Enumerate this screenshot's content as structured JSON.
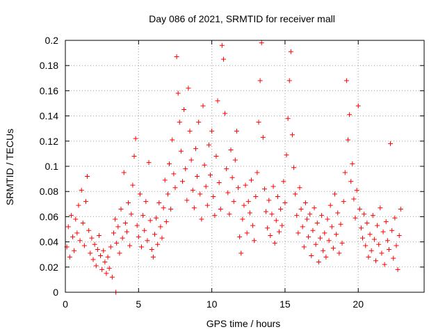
{
  "chart_data": {
    "type": "scatter",
    "title": "Day 086 of 2021, SRMTID for receiver mall",
    "xlabel": "GPS time / hours",
    "ylabel": "SRMTID / TECUs",
    "xlim": [
      0,
      24.5
    ],
    "ylim": [
      0,
      0.2
    ],
    "xticks": [
      0,
      5,
      10,
      15,
      20
    ],
    "xtick_labels": [
      "0",
      "5",
      "10",
      "15",
      "20"
    ],
    "yticks": [
      0,
      0.02,
      0.04,
      0.06,
      0.08,
      0.1,
      0.12,
      0.14,
      0.16,
      0.18,
      0.2
    ],
    "ytick_labels": [
      "0",
      "0.02",
      "0.04",
      "0.06",
      "0.08",
      "0.1",
      "0.12",
      "0.14",
      "0.16",
      "0.18",
      "0.2"
    ],
    "grid": true,
    "marker": "+",
    "color": "#ff0000",
    "series": [
      {
        "name": "SRMTID",
        "points": [
          [
            0.1,
            0.036
          ],
          [
            0.2,
            0.052
          ],
          [
            0.3,
            0.028
          ],
          [
            0.4,
            0.061
          ],
          [
            0.5,
            0.044
          ],
          [
            0.6,
            0.033
          ],
          [
            0.7,
            0.058
          ],
          [
            0.8,
            0.047
          ],
          [
            0.9,
            0.069
          ],
          [
            1.0,
            0.041
          ],
          [
            1.1,
            0.081
          ],
          [
            1.2,
            0.055
          ],
          [
            1.3,
            0.037
          ],
          [
            1.4,
            0.072
          ],
          [
            1.5,
            0.092
          ],
          [
            1.6,
            0.049
          ],
          [
            1.7,
            0.031
          ],
          [
            1.8,
            0.043
          ],
          [
            1.9,
            0.026
          ],
          [
            2.0,
            0.038
          ],
          [
            2.1,
            0.021
          ],
          [
            2.2,
            0.034
          ],
          [
            2.3,
            0.045
          ],
          [
            2.4,
            0.029
          ],
          [
            2.5,
            0.018
          ],
          [
            2.6,
            0.033
          ],
          [
            2.7,
            0.024
          ],
          [
            2.8,
            0.015
          ],
          [
            2.9,
            0.028
          ],
          [
            3.0,
            0.019
          ],
          [
            3.1,
            0.036
          ],
          [
            3.2,
            0.012
          ],
          [
            3.3,
            0.047
          ],
          [
            3.4,
            0.058
          ],
          [
            3.5,
            0.039
          ],
          [
            3.6,
            0.052
          ],
          [
            3.7,
            0.031
          ],
          [
            3.8,
            0.066
          ],
          [
            3.9,
            0.043
          ],
          [
            4.0,
            0.095
          ],
          [
            4.1,
            0.055
          ],
          [
            4.2,
            0.048
          ],
          [
            4.3,
            0.071
          ],
          [
            4.4,
            0.037
          ],
          [
            4.5,
            0.062
          ],
          [
            4.6,
            0.085
          ],
          [
            4.7,
            0.108
          ],
          [
            4.8,
            0.122
          ],
          [
            4.9,
            0.053
          ],
          [
            5.0,
            0.044
          ],
          [
            5.1,
            0.078
          ],
          [
            5.2,
            0.036
          ],
          [
            5.3,
            0.061
          ],
          [
            5.4,
            0.049
          ],
          [
            5.5,
            0.072
          ],
          [
            5.6,
            0.041
          ],
          [
            5.7,
            0.103
          ],
          [
            5.8,
            0.057
          ],
          [
            5.9,
            0.034
          ],
          [
            6.0,
            0.028
          ],
          [
            6.1,
            0.046
          ],
          [
            6.2,
            0.059
          ],
          [
            6.3,
            0.038
          ],
          [
            6.4,
            0.071
          ],
          [
            6.5,
            0.052
          ],
          [
            6.6,
            0.043
          ],
          [
            6.7,
            0.067
          ],
          [
            6.8,
            0.089
          ],
          [
            6.9,
            0.056
          ],
          [
            7.0,
            0.078
          ],
          [
            7.1,
            0.102
          ],
          [
            7.2,
            0.066
          ],
          [
            7.3,
            0.121
          ],
          [
            7.4,
            0.094
          ],
          [
            7.5,
            0.083
          ],
          [
            7.6,
            0.187
          ],
          [
            7.7,
            0.158
          ],
          [
            7.8,
            0.135
          ],
          [
            7.9,
            0.112
          ],
          [
            8.0,
            0.088
          ],
          [
            8.1,
            0.145
          ],
          [
            8.2,
            0.098
          ],
          [
            8.3,
            0.073
          ],
          [
            8.4,
            0.162
          ],
          [
            8.5,
            0.128
          ],
          [
            8.6,
            0.105
          ],
          [
            8.7,
            0.081
          ],
          [
            8.8,
            0.067
          ],
          [
            8.9,
            0.114
          ],
          [
            9.0,
            0.092
          ],
          [
            9.1,
            0.135
          ],
          [
            9.2,
            0.078
          ],
          [
            9.3,
            0.058
          ],
          [
            9.4,
            0.148
          ],
          [
            9.5,
            0.101
          ],
          [
            9.6,
            0.084
          ],
          [
            9.7,
            0.069
          ],
          [
            9.8,
            0.117
          ],
          [
            9.9,
            0.093
          ],
          [
            10.0,
            0.128
          ],
          [
            10.1,
            0.076
          ],
          [
            10.2,
            0.061
          ],
          [
            10.3,
            0.108
          ],
          [
            10.4,
            0.152
          ],
          [
            10.5,
            0.087
          ],
          [
            10.6,
            0.066
          ],
          [
            10.7,
            0.196
          ],
          [
            10.8,
            0.185
          ],
          [
            10.9,
            0.142
          ],
          [
            11.0,
            0.098
          ],
          [
            11.1,
            0.079
          ],
          [
            11.2,
            0.062
          ],
          [
            11.3,
            0.113
          ],
          [
            11.4,
            0.091
          ],
          [
            11.5,
            0.072
          ],
          [
            11.6,
            0.105
          ],
          [
            11.7,
            0.128
          ],
          [
            11.8,
            0.083
          ],
          [
            11.9,
            0.044
          ],
          [
            12.0,
            0.031
          ],
          [
            12.1,
            0.058
          ],
          [
            12.2,
            0.069
          ],
          [
            12.3,
            0.085
          ],
          [
            12.4,
            0.047
          ],
          [
            12.5,
            0.072
          ],
          [
            12.6,
            0.063
          ],
          [
            12.7,
            0.089
          ],
          [
            12.8,
            0.053
          ],
          [
            12.9,
            0.041
          ],
          [
            13.0,
            0.076
          ],
          [
            13.1,
            0.095
          ],
          [
            13.2,
            0.135
          ],
          [
            13.3,
            0.168
          ],
          [
            13.4,
            0.198
          ],
          [
            13.5,
            0.123
          ],
          [
            13.6,
            0.082
          ],
          [
            13.7,
            0.064
          ],
          [
            13.8,
            0.051
          ],
          [
            13.9,
            0.073
          ],
          [
            14.0,
            0.045
          ],
          [
            14.1,
            0.062
          ],
          [
            14.2,
            0.084
          ],
          [
            14.3,
            0.039
          ],
          [
            14.4,
            0.057
          ],
          [
            14.5,
            0.076
          ],
          [
            14.6,
            0.048
          ],
          [
            14.7,
            0.066
          ],
          [
            14.8,
            0.053
          ],
          [
            14.9,
            0.088
          ],
          [
            15.0,
            0.071
          ],
          [
            15.1,
            0.109
          ],
          [
            15.2,
            0.138
          ],
          [
            15.3,
            0.168
          ],
          [
            15.4,
            0.191
          ],
          [
            15.5,
            0.125
          ],
          [
            15.6,
            0.099
          ],
          [
            15.7,
            0.078
          ],
          [
            15.8,
            0.061
          ],
          [
            15.9,
            0.047
          ],
          [
            16.0,
            0.083
          ],
          [
            16.1,
            0.066
          ],
          [
            16.2,
            0.052
          ],
          [
            16.3,
            0.036
          ],
          [
            16.4,
            0.071
          ],
          [
            16.5,
            0.058
          ],
          [
            16.6,
            0.044
          ],
          [
            16.7,
            0.062
          ],
          [
            16.8,
            0.029
          ],
          [
            16.9,
            0.049
          ],
          [
            17.0,
            0.067
          ],
          [
            17.1,
            0.038
          ],
          [
            17.2,
            0.055
          ],
          [
            17.3,
            0.024
          ],
          [
            17.4,
            0.043
          ],
          [
            17.5,
            0.061
          ],
          [
            17.6,
            0.033
          ],
          [
            17.7,
            0.047
          ],
          [
            17.8,
            0.028
          ],
          [
            17.9,
            0.058
          ],
          [
            18.0,
            0.041
          ],
          [
            18.1,
            0.069
          ],
          [
            18.2,
            0.052
          ],
          [
            18.3,
            0.035
          ],
          [
            18.4,
            0.078
          ],
          [
            18.5,
            0.046
          ],
          [
            18.6,
            0.063
          ],
          [
            18.7,
            0.031
          ],
          [
            18.8,
            0.054
          ],
          [
            18.9,
            0.039
          ],
          [
            19.0,
            0.072
          ],
          [
            19.1,
            0.095
          ],
          [
            19.2,
            0.168
          ],
          [
            19.3,
            0.121
          ],
          [
            19.4,
            0.141
          ],
          [
            19.5,
            0.088
          ],
          [
            19.6,
            0.102
          ],
          [
            19.7,
            0.074
          ],
          [
            19.8,
            0.059
          ],
          [
            19.9,
            0.081
          ],
          [
            20.0,
            0.148
          ],
          [
            20.1,
            0.066
          ],
          [
            20.2,
            0.051
          ],
          [
            20.3,
            0.043
          ],
          [
            20.4,
            0.062
          ],
          [
            20.5,
            0.037
          ],
          [
            20.6,
            0.055
          ],
          [
            20.7,
            0.028
          ],
          [
            20.8,
            0.046
          ],
          [
            20.9,
            0.033
          ],
          [
            21.0,
            0.061
          ],
          [
            21.1,
            0.042
          ],
          [
            21.2,
            0.025
          ],
          [
            21.3,
            0.053
          ],
          [
            21.4,
            0.038
          ],
          [
            21.5,
            0.067
          ],
          [
            21.6,
            0.031
          ],
          [
            21.7,
            0.048
          ],
          [
            21.8,
            0.022
          ],
          [
            21.9,
            0.056
          ],
          [
            22.0,
            0.041
          ],
          [
            22.1,
            0.034
          ],
          [
            22.2,
            0.118
          ],
          [
            22.3,
            0.049
          ],
          [
            22.4,
            0.027
          ],
          [
            22.5,
            0.059
          ],
          [
            22.6,
            0.037
          ],
          [
            22.7,
            0.018
          ],
          [
            22.8,
            0.045
          ],
          [
            22.9,
            0.066
          ],
          [
            3.45,
            0.0
          ]
        ]
      }
    ]
  }
}
